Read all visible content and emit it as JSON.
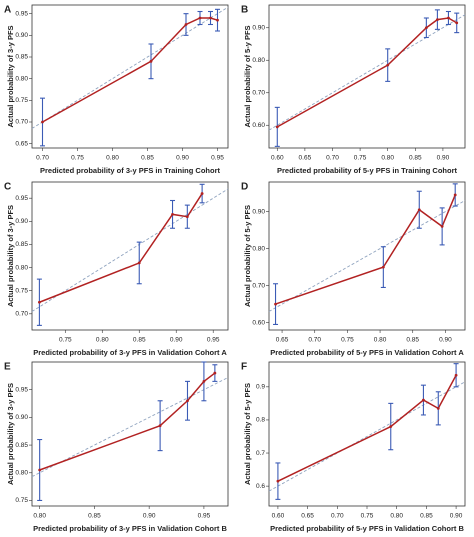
{
  "chart_data": [
    {
      "type": "line",
      "panel": "A",
      "xlabel": "Predicted probability of 3-y PFS in Training Cohort",
      "ylabel": "Actual probability of 3-y PFS",
      "x": [
        0.7,
        0.855,
        0.905,
        0.925,
        0.94,
        0.95
      ],
      "values": [
        0.7,
        0.84,
        0.925,
        0.94,
        0.94,
        0.935
      ],
      "errors": [
        0.055,
        0.04,
        0.025,
        0.015,
        0.015,
        0.025
      ],
      "color": "#b22222",
      "error_color": "#3b5bb5",
      "xlim": [
        0.685,
        0.965
      ],
      "ylim": [
        0.64,
        0.97
      ],
      "xticks": [
        {
          "value": 0.7,
          "label": "0.70"
        },
        0.75,
        {
          "value": 0.8,
          "label": "0.80"
        },
        0.85,
        {
          "value": 0.9,
          "label": "0.90"
        },
        0.95
      ],
      "yticks": [
        0.65,
        {
          "value": 0.7,
          "label": "0.70"
        },
        0.75,
        {
          "value": 0.8,
          "label": "0.80"
        },
        0.85,
        {
          "value": 0.9,
          "label": "0.90"
        },
        0.95
      ]
    },
    {
      "type": "line",
      "panel": "B",
      "xlabel": "Predicted probability of 5-y PFS in Training Cohort",
      "ylabel": "Actual probability of 5-y PFS",
      "x": [
        0.6,
        0.8,
        0.87,
        0.89,
        0.91,
        0.925
      ],
      "values": [
        0.595,
        0.785,
        0.9,
        0.925,
        0.93,
        0.915
      ],
      "errors": [
        0.06,
        0.05,
        0.03,
        0.03,
        0.02,
        0.03
      ],
      "color": "#b22222",
      "error_color": "#3b5bb5",
      "xlim": [
        0.585,
        0.94
      ],
      "ylim": [
        0.53,
        0.97
      ],
      "xticks": [
        {
          "value": 0.6,
          "label": "0.60"
        },
        0.65,
        {
          "value": 0.7,
          "label": "0.70"
        },
        0.75,
        {
          "value": 0.8,
          "label": "0.80"
        },
        0.85,
        {
          "value": 0.9,
          "label": "0.90"
        }
      ],
      "yticks": [
        {
          "value": 0.6,
          "label": "0.60"
        },
        {
          "value": 0.7,
          "label": "0.70"
        },
        {
          "value": 0.8,
          "label": "0.80"
        },
        {
          "value": 0.9,
          "label": "0.90"
        }
      ]
    },
    {
      "type": "line",
      "panel": "C",
      "xlabel": "Predicted probability of 3-y PFS in Validation Cohort A",
      "ylabel": "Actual probability of 3-y PFS",
      "x": [
        0.715,
        0.85,
        0.895,
        0.915,
        0.935
      ],
      "values": [
        0.725,
        0.81,
        0.915,
        0.91,
        0.96
      ],
      "errors": [
        0.05,
        0.045,
        0.03,
        0.025,
        0.02
      ],
      "color": "#b22222",
      "error_color": "#3b5bb5",
      "xlim": [
        0.705,
        0.97
      ],
      "ylim": [
        0.665,
        0.985
      ],
      "xticks": [
        0.75,
        {
          "value": 0.8,
          "label": "0.80"
        },
        0.85,
        {
          "value": 0.9,
          "label": "0.90"
        },
        0.95
      ],
      "yticks": [
        {
          "value": 0.7,
          "label": "0.70"
        },
        0.75,
        {
          "value": 0.8,
          "label": "0.80"
        },
        0.85,
        {
          "value": 0.9,
          "label": "0.90"
        },
        0.95
      ]
    },
    {
      "type": "line",
      "panel": "D",
      "xlabel": "Predicted probability of 5-y PFS in Validation Cohort A",
      "ylabel": "Actual probability of 5-y PFS",
      "x": [
        0.64,
        0.805,
        0.86,
        0.895,
        0.915
      ],
      "values": [
        0.65,
        0.75,
        0.905,
        0.86,
        0.945
      ],
      "errors": [
        0.055,
        0.055,
        0.05,
        0.05,
        0.03
      ],
      "color": "#b22222",
      "error_color": "#3b5bb5",
      "xlim": [
        0.63,
        0.93
      ],
      "ylim": [
        0.58,
        0.98
      ],
      "xticks": [
        0.65,
        {
          "value": 0.7,
          "label": "0.70"
        },
        0.75,
        {
          "value": 0.8,
          "label": "0.80"
        },
        0.85,
        {
          "value": 0.9,
          "label": "0.90"
        }
      ],
      "yticks": [
        {
          "value": 0.6,
          "label": "0.60"
        },
        {
          "value": 0.7,
          "label": "0.70"
        },
        {
          "value": 0.8,
          "label": "0.80"
        },
        {
          "value": 0.9,
          "label": "0.90"
        }
      ]
    },
    {
      "type": "line",
      "panel": "E",
      "xlabel": "Predicted probability of 3-y PFS in Validation Cohort B",
      "ylabel": "Actual probability of 3-y PFS",
      "x": [
        0.8,
        0.91,
        0.935,
        0.95,
        0.96
      ],
      "values": [
        0.805,
        0.885,
        0.93,
        0.965,
        0.98
      ],
      "errors": [
        0.055,
        0.045,
        0.035,
        0.035,
        0.015
      ],
      "color": "#b22222",
      "error_color": "#3b5bb5",
      "xlim": [
        0.793,
        0.972
      ],
      "ylim": [
        0.74,
        1.0
      ],
      "xticks": [
        {
          "value": 0.8,
          "label": "0.80"
        },
        0.85,
        {
          "value": 0.9,
          "label": "0.90"
        },
        0.95
      ],
      "yticks": [
        0.75,
        {
          "value": 0.8,
          "label": "0.80"
        },
        0.85,
        {
          "value": 0.9,
          "label": "0.90"
        },
        0.95
      ]
    },
    {
      "type": "line",
      "panel": "F",
      "xlabel": "Predicted probability of 5-y PFS in Validation Cohort B",
      "ylabel": "Actual probability of 5-y PFS",
      "x": [
        0.6,
        0.79,
        0.845,
        0.87,
        0.9
      ],
      "values": [
        0.615,
        0.78,
        0.86,
        0.835,
        0.935
      ],
      "errors": [
        0.055,
        0.07,
        0.045,
        0.05,
        0.035
      ],
      "color": "#b22222",
      "error_color": "#3b5bb5",
      "xlim": [
        0.585,
        0.915
      ],
      "ylim": [
        0.54,
        0.975
      ],
      "xticks": [
        {
          "value": 0.6,
          "label": "0.60"
        },
        0.65,
        {
          "value": 0.7,
          "label": "0.70"
        },
        0.75,
        {
          "value": 0.8,
          "label": "0.80"
        },
        0.85,
        {
          "value": 0.9,
          "label": "0.90"
        }
      ],
      "yticks": [
        0.6,
        0.7,
        0.8,
        0.9
      ]
    }
  ]
}
